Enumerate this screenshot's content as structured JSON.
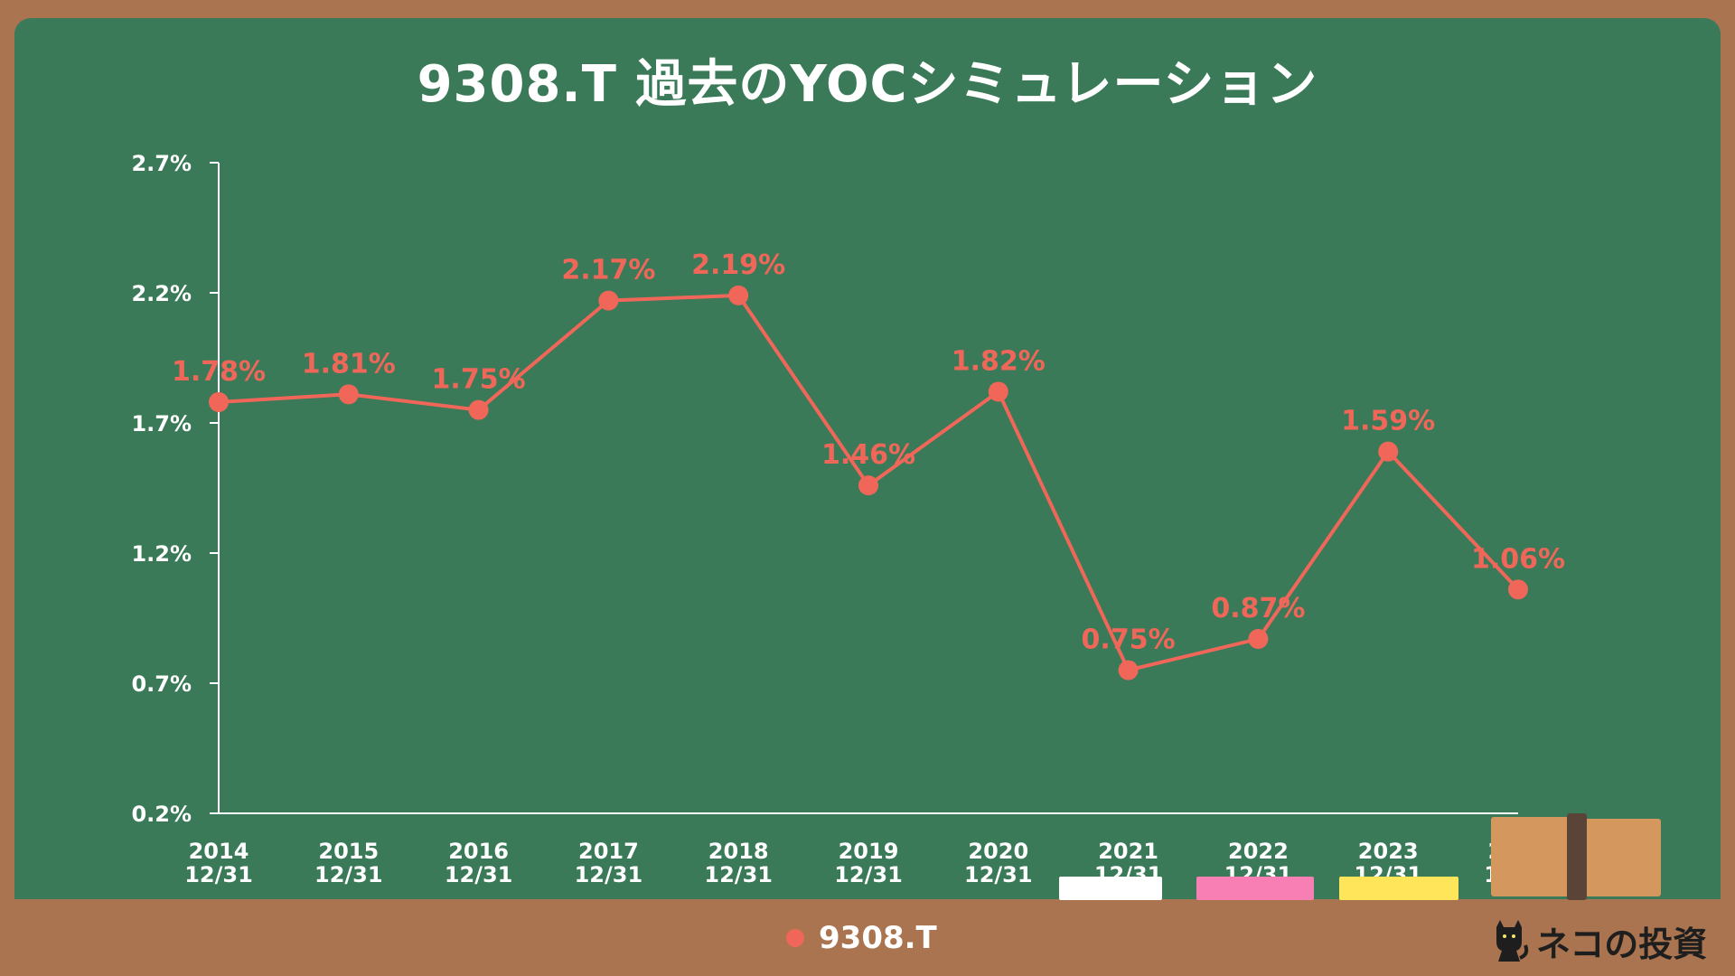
{
  "title": "9308.T 過去のYOCシミュレーション",
  "legend": {
    "series_name": "9308.T"
  },
  "brand": {
    "text": "ネコの投資",
    "icon": "cat-icon"
  },
  "colors": {
    "board": "#3a7a58",
    "frame": "#a9744f",
    "series": "#f0675a",
    "axis": "#ffffff"
  },
  "chart_data": {
    "type": "line",
    "title": "9308.T 過去のYOCシミュレーション",
    "x": [
      "2014\n12/31",
      "2015\n12/31",
      "2016\n12/31",
      "2017\n12/31",
      "2018\n12/31",
      "2019\n12/31",
      "2020\n12/31",
      "2021\n12/31",
      "2022\n12/31",
      "2023\n12/31",
      "2024\n12/16"
    ],
    "series": [
      {
        "name": "9308.T",
        "values": [
          1.78,
          1.81,
          1.75,
          2.17,
          2.19,
          1.46,
          1.82,
          0.75,
          0.87,
          1.59,
          1.06
        ]
      }
    ],
    "data_labels": [
      "1.78%",
      "1.81%",
      "1.75%",
      "2.17%",
      "2.19%",
      "1.46%",
      "1.82%",
      "0.75%",
      "0.87%",
      "1.59%",
      "1.06%"
    ],
    "y_ticks": [
      "2.7%",
      "2.2%",
      "1.7%",
      "1.2%",
      "0.7%",
      "0.2%"
    ],
    "y_tick_values": [
      2.7,
      2.2,
      1.7,
      1.2,
      0.7,
      0.2
    ],
    "ylim": [
      0.2,
      2.7
    ],
    "grid": false,
    "legend_position": "bottom-center"
  }
}
